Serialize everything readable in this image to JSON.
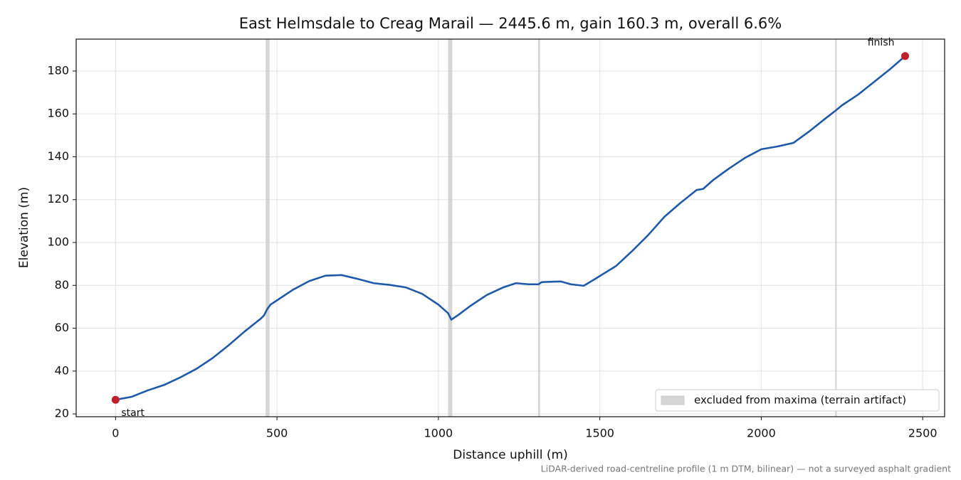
{
  "chart_data": {
    "type": "line",
    "title": "East Helmsdale to Creag Marail — 2445.6 m, gain 160.3 m, overall 6.6%",
    "xlabel": "Distance uphill (m)",
    "ylabel": "Elevation (m)",
    "x": [
      0,
      50,
      100,
      150,
      200,
      250,
      300,
      350,
      400,
      450,
      460,
      470,
      480,
      500,
      550,
      600,
      650,
      700,
      750,
      800,
      850,
      900,
      950,
      1000,
      1030,
      1040,
      1060,
      1100,
      1150,
      1200,
      1240,
      1280,
      1310,
      1320,
      1350,
      1380,
      1410,
      1450,
      1480,
      1550,
      1600,
      1650,
      1700,
      1750,
      1800,
      1820,
      1850,
      1900,
      1950,
      2000,
      2050,
      2100,
      2150,
      2200,
      2230,
      2250,
      2300,
      2350,
      2400,
      2445.6
    ],
    "series": [
      {
        "color": "#1f5aa8",
        "values": [
          26.6,
          28,
          31,
          33.5,
          37,
          41,
          46,
          52,
          58.5,
          64.5,
          66,
          69,
          71,
          73,
          78,
          82,
          84.5,
          84.8,
          83,
          81,
          80.2,
          79,
          76,
          71,
          67,
          64,
          66,
          70.5,
          75.5,
          79,
          81,
          80.5,
          80.5,
          81.5,
          81.7,
          81.8,
          80.5,
          79.8,
          82.5,
          89,
          96,
          103.5,
          112,
          118.5,
          124.5,
          125,
          129,
          134.5,
          139.5,
          143.5,
          144.8,
          146.5,
          152,
          158,
          161.5,
          164,
          169,
          175,
          181,
          187
        ]
      }
    ],
    "endpoint_color": "#c0202a",
    "start_label": "start",
    "finish_label": "finish",
    "excluded": {
      "label": "excluded from maxima (terrain artifact)",
      "color": "#c8c8c8",
      "ranges": [
        [
          465,
          477
        ],
        [
          1030,
          1043
        ],
        [
          1309,
          1315
        ],
        [
          2229,
          2234
        ]
      ]
    },
    "xlim": [
      -122,
      2568
    ],
    "ylim": [
      18.7,
      194.9
    ],
    "xticks": [
      0,
      500,
      1000,
      1500,
      2000,
      2500
    ],
    "yticks": [
      20,
      40,
      60,
      80,
      100,
      120,
      140,
      160,
      180
    ],
    "grid": true,
    "legend": "lower right",
    "note": "LiDAR-derived road-centreline profile (1 m DTM, bilinear) — not a surveyed asphalt gradient"
  }
}
